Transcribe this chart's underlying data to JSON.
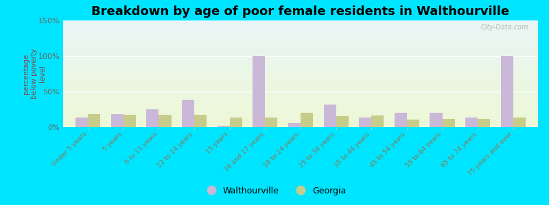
{
  "title": "Breakdown by age of poor female residents in Walthourville",
  "ylabel": "percentage\nbelow poverty\nlevel",
  "categories": [
    "Under 5 years",
    "5 years",
    "6 to 11 years",
    "12 to 14 years",
    "15 years",
    "16 and 17 years",
    "18 to 24 years",
    "25 to 34 years",
    "35 to 44 years",
    "45 to 54 years",
    "55 to 64 years",
    "65 to 74 years",
    "75 years and over"
  ],
  "walthourville": [
    13,
    18,
    25,
    38,
    2,
    100,
    6,
    32,
    13,
    20,
    20,
    13,
    100
  ],
  "georgia": [
    18,
    17,
    17,
    17,
    13,
    13,
    20,
    15,
    16,
    11,
    12,
    12,
    13
  ],
  "walthourville_color": "#c9b8d8",
  "georgia_color": "#c8cc8a",
  "outer_bg_color": "#00e5ff",
  "bar_width": 0.35,
  "ylim": [
    0,
    150
  ],
  "yticks": [
    0,
    50,
    100,
    150
  ],
  "ytick_labels": [
    "0%",
    "50%",
    "100%",
    "150%"
  ],
  "title_fontsize": 13,
  "ylabel_color": "#884444",
  "tick_label_color": "#887755",
  "ytick_label_color": "#666666",
  "grid_color": "#dddddd",
  "legend_walthourville": "Walthourville",
  "legend_georgia": "Georgia",
  "watermark": "City-Data.com",
  "bg_top_color": "#e8f4f0",
  "bg_bottom_color": "#eef4d8"
}
